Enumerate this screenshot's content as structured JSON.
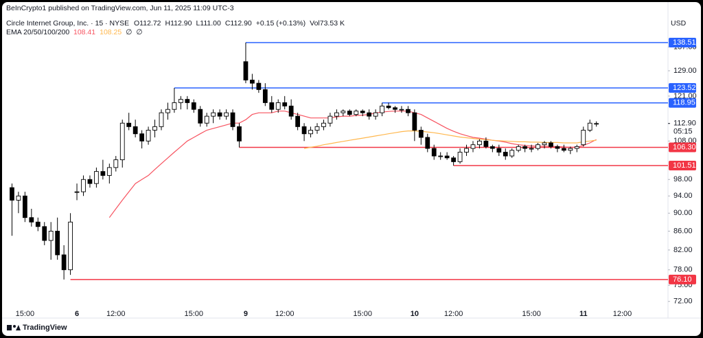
{
  "header": {
    "published": "BeInCrypto1 published on TradingView.com, Jun 11, 2025 11:09 UTC-3",
    "symbol": "Circle Internet Group, Inc. · 15 · NYSE",
    "ohlc": [
      "O112.72",
      "H112.90",
      "L111.00",
      "C112.90",
      "+0.15 (+0.13%)",
      "Vol73.53 K"
    ],
    "indicator": "EMA 20/50/100/200",
    "indicator_values": [
      "108.41",
      "108.25",
      "∅",
      "∅"
    ],
    "currency": "USD",
    "footer": "TradingView"
  },
  "chart_data": {
    "type": "candlestick",
    "log": true,
    "grid": false,
    "up_color": "#ffffff",
    "down_color": "#000000",
    "ylim": [
      70,
      149
    ],
    "xlim": [
      -1,
      100.5
    ],
    "yticks": [
      {
        "value": 137,
        "label": "137.00"
      },
      {
        "value": 129,
        "label": "129.00"
      },
      {
        "value": 121,
        "label": "121.00"
      },
      {
        "value": 108,
        "label": "108.00"
      },
      {
        "value": 98,
        "label": "98.00"
      },
      {
        "value": 94,
        "label": "94.00"
      },
      {
        "value": 90,
        "label": "90.00"
      },
      {
        "value": 86,
        "label": "86.00"
      },
      {
        "value": 82,
        "label": "82.00"
      },
      {
        "value": 78,
        "label": "78.00"
      },
      {
        "value": 75,
        "label": "75.00"
      },
      {
        "value": 72,
        "label": "72.00"
      }
    ],
    "xticks": [
      {
        "value": 2,
        "label": "15:00"
      },
      {
        "value": 10,
        "label": "6"
      },
      {
        "value": 16,
        "label": "12:00"
      },
      {
        "value": 28,
        "label": "15:00"
      },
      {
        "value": 36,
        "label": "9"
      },
      {
        "value": 42,
        "label": "12:00"
      },
      {
        "value": 54,
        "label": "15:00"
      },
      {
        "value": 62,
        "label": "10"
      },
      {
        "value": 68,
        "label": "12:00"
      },
      {
        "value": 80,
        "label": "15:00"
      },
      {
        "value": 88,
        "label": "11"
      },
      {
        "value": 94,
        "label": "12:00"
      }
    ],
    "ohlc": [
      [
        96,
        97,
        85,
        93
      ],
      [
        93,
        95,
        90,
        94
      ],
      [
        94,
        95,
        88,
        89
      ],
      [
        89,
        91,
        87,
        88
      ],
      [
        88,
        89,
        86,
        87
      ],
      [
        87,
        88,
        83,
        84
      ],
      [
        84,
        88,
        80,
        86
      ],
      [
        86,
        89,
        80,
        81
      ],
      [
        81,
        83,
        76.1,
        78
      ],
      [
        78,
        90,
        77,
        88
      ],
      [
        95,
        97,
        93,
        95
      ],
      [
        95,
        99,
        94,
        98
      ],
      [
        98,
        99,
        96,
        97
      ],
      [
        97,
        101,
        96,
        100
      ],
      [
        100,
        103,
        98,
        99
      ],
      [
        99,
        102,
        97,
        101
      ],
      [
        101,
        104,
        100,
        103
      ],
      [
        103,
        114,
        101,
        113
      ],
      [
        113,
        116,
        111,
        112
      ],
      [
        112,
        114,
        109,
        110
      ],
      [
        110,
        111,
        106,
        108
      ],
      [
        108,
        112,
        107,
        111
      ],
      [
        111,
        114,
        109,
        112
      ],
      [
        112,
        117,
        111,
        116
      ],
      [
        116,
        119,
        114,
        117
      ],
      [
        117,
        123.52,
        116,
        119
      ],
      [
        119,
        121,
        117,
        120
      ],
      [
        120,
        121,
        117,
        119
      ],
      [
        119,
        120,
        116,
        117
      ],
      [
        117,
        118,
        112,
        113
      ],
      [
        113,
        116,
        112,
        115
      ],
      [
        115,
        117,
        113,
        116
      ],
      [
        116,
        117,
        114,
        115
      ],
      [
        115,
        117,
        114,
        116
      ],
      [
        116,
        117,
        111,
        112
      ],
      [
        112,
        113,
        106.3,
        108
      ],
      [
        132,
        138.51,
        125,
        126
      ],
      [
        126,
        128,
        123,
        125
      ],
      [
        125,
        126,
        122,
        123
      ],
      [
        123,
        125,
        118,
        119
      ],
      [
        119,
        121,
        116,
        117
      ],
      [
        117,
        120,
        116,
        119
      ],
      [
        119,
        121,
        117,
        118
      ],
      [
        118,
        120,
        114,
        115
      ],
      [
        115,
        116,
        111,
        112
      ],
      [
        112,
        113,
        108,
        110
      ],
      [
        110,
        112,
        109,
        111
      ],
      [
        111,
        113,
        110,
        112
      ],
      [
        112,
        114,
        111,
        113
      ],
      [
        113,
        116,
        112,
        115
      ],
      [
        115,
        117,
        114,
        116
      ],
      [
        116,
        117,
        115,
        116.5
      ],
      [
        116.5,
        117,
        115,
        115.5
      ],
      [
        115.5,
        117,
        115,
        116.5
      ],
      [
        116.5,
        117,
        115,
        116
      ],
      [
        116,
        117,
        114,
        115
      ],
      [
        115,
        117,
        114,
        116
      ],
      [
        116,
        118.95,
        115,
        118
      ],
      [
        118,
        119,
        117,
        117.5
      ],
      [
        117.5,
        118,
        116,
        117
      ],
      [
        117,
        118,
        116,
        117
      ],
      [
        117,
        118,
        115,
        116
      ],
      [
        116,
        117,
        108,
        111
      ],
      [
        111,
        112,
        107,
        109
      ],
      [
        109,
        110,
        105,
        106
      ],
      [
        106,
        107,
        103,
        104
      ],
      [
        104,
        105,
        103,
        104
      ],
      [
        104,
        105,
        103,
        103.5
      ],
      [
        103.5,
        104,
        101.51,
        102.5
      ],
      [
        102.5,
        106,
        102,
        105
      ],
      [
        105,
        107,
        104,
        106
      ],
      [
        106,
        108,
        105,
        107
      ],
      [
        107,
        108.5,
        106,
        108
      ],
      [
        108,
        109,
        106,
        106.5
      ],
      [
        106.5,
        107,
        105,
        106
      ],
      [
        106,
        107,
        104,
        105
      ],
      [
        105,
        106,
        103,
        104
      ],
      [
        104,
        106,
        103.5,
        105.5
      ],
      [
        105.5,
        107,
        105,
        106.5
      ],
      [
        106.5,
        107,
        105,
        106
      ],
      [
        106,
        107,
        105,
        106
      ],
      [
        106,
        107.5,
        105.5,
        107
      ],
      [
        107,
        108,
        106,
        107.5
      ],
      [
        107.5,
        108,
        106,
        106.5
      ],
      [
        106.5,
        107,
        105,
        106
      ],
      [
        106,
        107,
        105,
        105.5
      ],
      [
        105.5,
        106.5,
        104.5,
        106
      ],
      [
        106,
        107,
        105,
        106.5
      ],
      [
        107,
        112,
        106.5,
        111
      ],
      [
        111,
        114,
        110.5,
        113
      ],
      [
        112.9,
        113.5,
        112,
        112.9
      ]
    ],
    "series": [
      {
        "name": "EMA 20",
        "color": "#f7525f",
        "values": [
          null,
          null,
          null,
          null,
          null,
          null,
          null,
          null,
          null,
          null,
          null,
          null,
          null,
          null,
          null,
          89,
          91,
          93,
          95,
          97,
          98,
          99,
          100.5,
          102,
          103.5,
          105,
          106.5,
          108,
          109,
          110,
          111,
          111.5,
          112,
          112.5,
          113,
          113,
          114,
          115.5,
          116,
          116,
          116,
          116.5,
          116.5,
          116,
          115.5,
          115,
          114.5,
          114.5,
          114.5,
          114.5,
          114.8,
          115,
          115,
          115.2,
          115.3,
          115.5,
          116,
          116.2,
          116.4,
          116.5,
          116.5,
          116.5,
          116,
          115.5,
          114.5,
          113.5,
          112.5,
          111.5,
          110.7,
          110,
          109.5,
          109,
          108.8,
          108.5,
          108.2,
          108,
          107.7,
          107.3,
          107,
          106.8,
          106.7,
          106.6,
          106.6,
          106.6,
          106.5,
          106.4,
          106.3,
          106.3,
          106.8,
          107.5,
          108.41
        ]
      },
      {
        "name": "EMA 50",
        "color": "#ffb74d",
        "values": [
          null,
          null,
          null,
          null,
          null,
          null,
          null,
          null,
          null,
          null,
          null,
          null,
          null,
          null,
          null,
          null,
          null,
          null,
          null,
          null,
          null,
          null,
          null,
          null,
          null,
          null,
          null,
          null,
          null,
          null,
          null,
          null,
          null,
          null,
          null,
          null,
          null,
          null,
          null,
          null,
          null,
          null,
          null,
          null,
          null,
          106,
          106.3,
          106.6,
          107,
          107.3,
          107.6,
          107.9,
          108.2,
          108.5,
          108.8,
          109.1,
          109.4,
          109.7,
          110,
          110.3,
          110.6,
          110.8,
          110.8,
          110.7,
          110.5,
          110.3,
          110,
          109.7,
          109.4,
          109.1,
          108.9,
          108.7,
          108.5,
          108.4,
          108.2,
          108.1,
          108,
          107.9,
          107.8,
          107.8,
          107.7,
          107.7,
          107.6,
          107.6,
          107.6,
          107.5,
          107.5,
          107.5,
          107.8,
          108,
          108.25
        ]
      }
    ],
    "levels": [
      {
        "value": 138.51,
        "label": "138.51",
        "start": 36,
        "color": "#2962ff"
      },
      {
        "value": 123.52,
        "label": "123.52",
        "start": 25,
        "color": "#2962ff"
      },
      {
        "value": 118.95,
        "label": "118.95",
        "start": 57,
        "color": "#2962ff"
      },
      {
        "value": 106.3,
        "label": "106.30",
        "start": 35,
        "color": "#f23645"
      },
      {
        "value": 101.51,
        "label": "101.51",
        "start": 68,
        "color": "#f23645"
      },
      {
        "value": 76.1,
        "label": "76.10",
        "start": 9,
        "color": "#f23645"
      }
    ],
    "last_price": {
      "value": 112.9,
      "label": "112.90",
      "countdown": "05:15"
    }
  }
}
